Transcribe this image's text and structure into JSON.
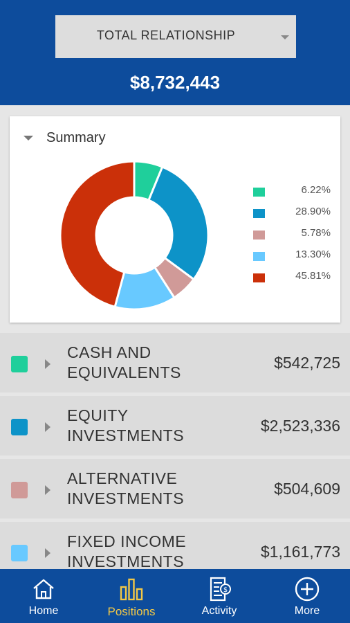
{
  "header": {
    "relationship_selector": "TOTAL RELATIONSHIP",
    "total_value": "$8,732,443"
  },
  "summary": {
    "title": "Summary"
  },
  "chart_data": {
    "type": "pie",
    "donut": true,
    "title": "",
    "start_angle_deg": 0,
    "series": [
      {
        "value": 6.22,
        "label": "6.22%",
        "color": "#1fcf9b"
      },
      {
        "value": 28.9,
        "label": "28.90%",
        "color": "#0d93c8"
      },
      {
        "value": 5.78,
        "label": "5.78%",
        "color": "#d09a98"
      },
      {
        "value": 13.3,
        "label": "13.30%",
        "color": "#68c9ff"
      },
      {
        "value": 45.81,
        "label": "45.81%",
        "color": "#cb3009"
      }
    ],
    "legend_position": "right"
  },
  "positions": [
    {
      "name_line1": "CASH AND",
      "name_line2": "EQUIVALENTS",
      "value": "$542,725",
      "color": "#1fcf9b"
    },
    {
      "name_line1": "EQUITY",
      "name_line2": "INVESTMENTS",
      "value": "$2,523,336",
      "color": "#0d93c8"
    },
    {
      "name_line1": "ALTERNATIVE",
      "name_line2": "INVESTMENTS",
      "value": "$504,609",
      "color": "#d09a98"
    },
    {
      "name_line1": "FIXED INCOME",
      "name_line2": "INVESTMENTS",
      "value": "$1,161,773",
      "color": "#68c9ff"
    }
  ],
  "nav": {
    "items": [
      {
        "label": "Home",
        "icon": "home-icon"
      },
      {
        "label": "Positions",
        "icon": "bar-chart-icon",
        "active": true
      },
      {
        "label": "Activity",
        "icon": "statement-icon"
      },
      {
        "label": "More",
        "icon": "plus-circle-icon"
      }
    ]
  },
  "colors": {
    "brand_blue": "#0d4c9c",
    "active_nav": "#f3c846"
  }
}
